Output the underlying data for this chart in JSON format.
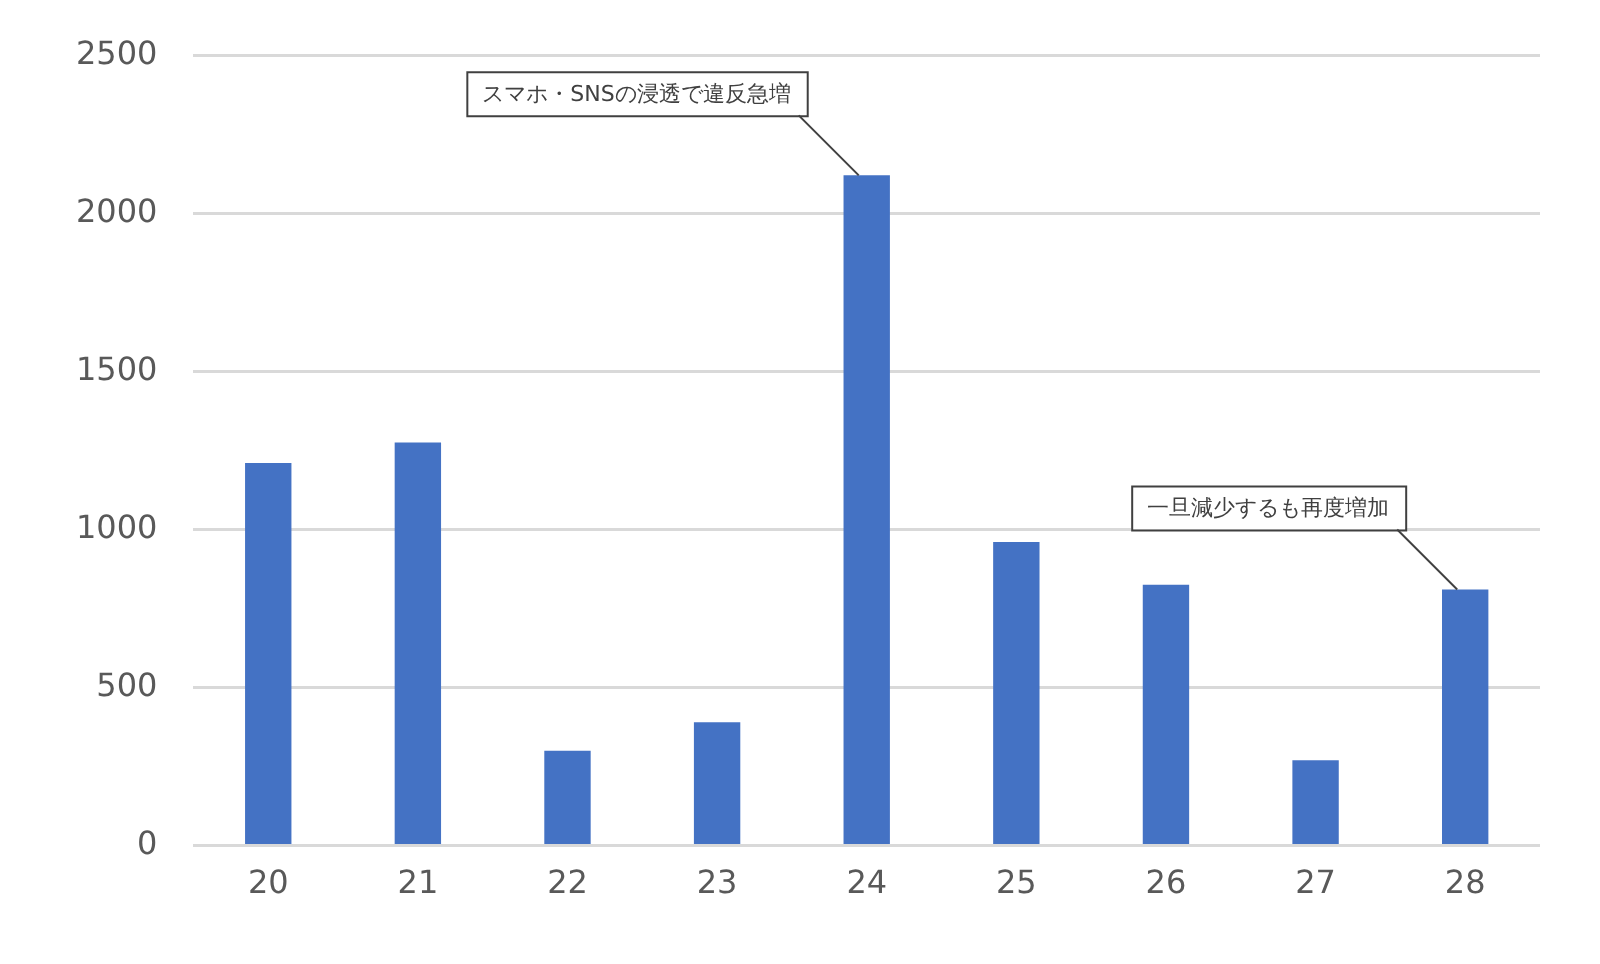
{
  "chart_data": {
    "type": "bar",
    "categories": [
      "20",
      "21",
      "22",
      "23",
      "24",
      "25",
      "26",
      "27",
      "28"
    ],
    "values": [
      1210,
      1275,
      300,
      390,
      2120,
      960,
      825,
      270,
      810
    ],
    "color": "#4472c4",
    "ylim": [
      0,
      2500
    ],
    "yticks": [
      0,
      500,
      1000,
      1500,
      2000,
      2500
    ],
    "grid": "y",
    "annotations": [
      {
        "text": "スマホ・SNSの浸透で違反急増",
        "x": "24",
        "y": 2120
      },
      {
        "text": "一旦減少するも再度増加",
        "x": "28",
        "y": 810
      }
    ]
  }
}
